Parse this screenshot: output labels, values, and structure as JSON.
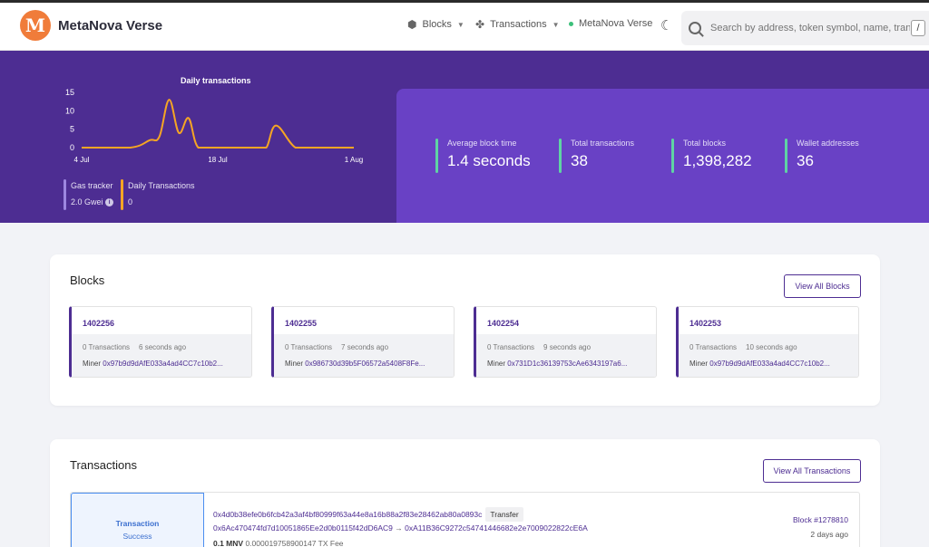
{
  "header": {
    "brand": "MetaNova Verse",
    "logo_letter": "M",
    "nav": [
      {
        "label": "Blocks",
        "icon": "cube-icon"
      },
      {
        "label": "Transactions",
        "icon": "arrows-icon"
      }
    ],
    "network": "MetaNova Verse",
    "search_placeholder": "Search by address, token symbol, name, transaction hash, or block number",
    "search_shortcut": "/"
  },
  "hero": {
    "chart_title": "Daily transactions",
    "gas": {
      "label": "Gas tracker",
      "value": "2.0 Gwei"
    },
    "daily_tx": {
      "label": "Daily Transactions",
      "value": "0"
    },
    "stats": [
      {
        "label": "Average block time",
        "value": "1.4 seconds"
      },
      {
        "label": "Total transactions",
        "value": "38"
      },
      {
        "label": "Total blocks",
        "value": "1,398,282"
      },
      {
        "label": "Wallet addresses",
        "value": "36"
      }
    ]
  },
  "chart_data": {
    "type": "line",
    "title": "Daily transactions",
    "y_ticks": [
      "15",
      "10",
      "5",
      "0"
    ],
    "x_ticks": [
      "4 Jul",
      "18 Jul",
      "1 Aug"
    ],
    "ylim": [
      0,
      15
    ],
    "x_range": [
      0,
      28
    ],
    "x_tick_positions": [
      0,
      14,
      28
    ],
    "line_color": "#f5a524",
    "series": [
      {
        "x": [
          0,
          5,
          7,
          8,
          9,
          10,
          11,
          12,
          14,
          16,
          18,
          19,
          20,
          22,
          24,
          26,
          28
        ],
        "values": [
          0,
          0,
          2,
          3,
          13,
          4,
          8,
          0,
          0,
          0,
          0,
          0,
          6,
          0,
          0,
          0,
          0
        ]
      }
    ]
  },
  "blocks": {
    "title": "Blocks",
    "view_all": "View All Blocks",
    "items": [
      {
        "number": "1402256",
        "txs": "0 Transactions",
        "age": "6 seconds ago",
        "miner_label": "Miner",
        "miner": "0x97b9d9dAfE033a4ad4CC7c10b2..."
      },
      {
        "number": "1402255",
        "txs": "0 Transactions",
        "age": "7 seconds ago",
        "miner_label": "Miner",
        "miner": "0x986730d39b5F06572a5408F8Fe..."
      },
      {
        "number": "1402254",
        "txs": "0 Transactions",
        "age": "9 seconds ago",
        "miner_label": "Miner",
        "miner": "0x731D1c36139753cAe6343197a6..."
      },
      {
        "number": "1402253",
        "txs": "0 Transactions",
        "age": "10 seconds ago",
        "miner_label": "Miner",
        "miner": "0x97b9d9dAfE033a4ad4CC7c10b2..."
      }
    ]
  },
  "transactions": {
    "title": "Transactions",
    "view_all": "View All Transactions",
    "items": [
      {
        "type_label": "Transaction",
        "status": "Success",
        "hash": "0x4d0b38efe0b6fcb42a3af4bf80999f63a44e8a16b88a2f83e28462ab80a0893c",
        "tag": "Transfer",
        "from": "0x6Ac470474fd7d10051865Ee2d0b0115f42dD6AC9",
        "arrow": "→",
        "to": "0xA11B36C9272c54741446682e2e7009022822cE6A",
        "amount": "0.1 MNV",
        "fee": "0.000019758900147 TX Fee",
        "block": "Block #1278810",
        "age": "2 days ago"
      }
    ]
  },
  "colors": {
    "hero_bg": "#4d2d92",
    "panel_bg": "#6941c5",
    "accent": "#4d2d92",
    "stat_bar": "#5fd3a4",
    "gas_bar": "#9d86e0",
    "daily_bar": "#f5a524"
  }
}
